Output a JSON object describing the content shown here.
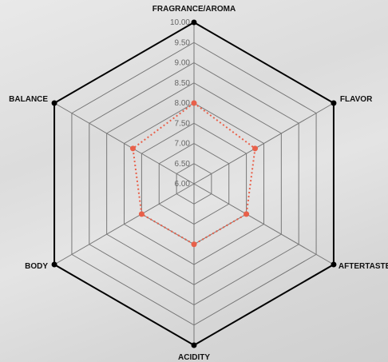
{
  "chart_data": {
    "type": "radar",
    "axes": [
      "FRAGRANCE/AROMA",
      "FLAVOR",
      "AFTERTASTE",
      "ACIDITY",
      "BODY",
      "BALANCE"
    ],
    "range": [
      6.0,
      10.0
    ],
    "ticks": [
      "6.00",
      "6.50",
      "7.00",
      "7.50",
      "8.00",
      "8.50",
      "9.00",
      "9.50",
      "10.00"
    ],
    "series": [
      {
        "values": [
          8.0,
          7.75,
          7.5,
          7.5,
          7.5,
          7.75
        ]
      }
    ],
    "colors": {
      "series": "#e8604a",
      "grid": "#777777",
      "outer": "#000000"
    },
    "grid": true
  }
}
